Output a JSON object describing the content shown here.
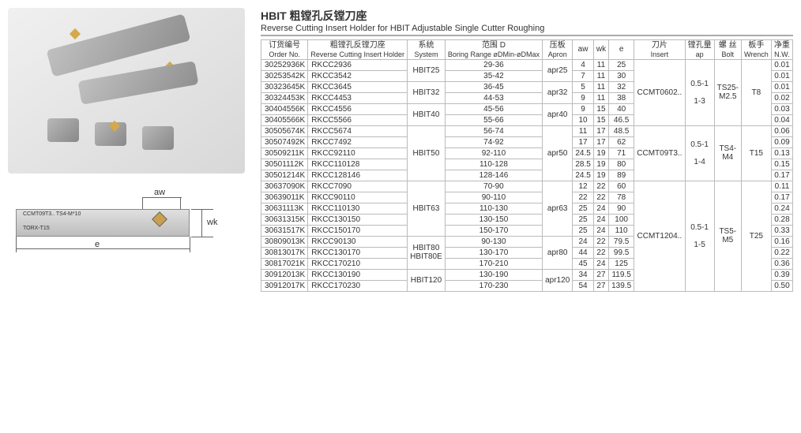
{
  "title": {
    "heading_cn": "HBIT 粗镗孔反镗刀座",
    "heading_en": "Reverse Cutting Insert Holder for HBIT Adjustable Single Cutter Roughing"
  },
  "diagram": {
    "aw_label": "aw",
    "wk_label": "wk",
    "e_label": "e",
    "insert_text": "CCMT09T3.. TS4-M*10"
  },
  "columns": [
    {
      "top": "订货编号",
      "bot": "Order No."
    },
    {
      "top": "粗镗孔反镗刀座",
      "bot": "Reverse Cutting Insert Holder"
    },
    {
      "top": "系统",
      "bot": "System"
    },
    {
      "top": "范围 D",
      "bot": "Boring Range øDMin-øDMax"
    },
    {
      "top": "压板",
      "bot": "Apron"
    },
    {
      "top": "aw",
      "bot": ""
    },
    {
      "top": "wk",
      "bot": ""
    },
    {
      "top": "e",
      "bot": ""
    },
    {
      "top": "刀片",
      "bot": "Insert"
    },
    {
      "top": "镗孔量",
      "bot": "ap"
    },
    {
      "top": "螺 丝",
      "bot": "Bolt"
    },
    {
      "top": "板手",
      "bot": "Wrench"
    },
    {
      "top": "净重",
      "bot": "N.W."
    }
  ],
  "rows": [
    {
      "order": "30252936K",
      "holder": "RKCC2936",
      "range": "29-36",
      "aw": "4",
      "wk": "11",
      "e": "25",
      "nw": "0.01"
    },
    {
      "order": "30253542K",
      "holder": "RKCC3542",
      "range": "35-42",
      "aw": "7",
      "wk": "11",
      "e": "30",
      "nw": "0.01"
    },
    {
      "order": "30323645K",
      "holder": "RKCC3645",
      "range": "36-45",
      "aw": "5",
      "wk": "11",
      "e": "32",
      "nw": "0.01"
    },
    {
      "order": "30324453K",
      "holder": "RKCC4453",
      "range": "44-53",
      "aw": "9",
      "wk": "11",
      "e": "38",
      "nw": "0.02"
    },
    {
      "order": "30404556K",
      "holder": "RKCC4556",
      "range": "45-56",
      "aw": "9",
      "wk": "15",
      "e": "40",
      "nw": "0.03"
    },
    {
      "order": "30405566K",
      "holder": "RKCC5566",
      "range": "55-66",
      "aw": "10",
      "wk": "15",
      "e": "46.5",
      "nw": "0.04"
    },
    {
      "order": "30505674K",
      "holder": "RKCC5674",
      "range": "56-74",
      "aw": "11",
      "wk": "17",
      "e": "48.5",
      "nw": "0.06"
    },
    {
      "order": "30507492K",
      "holder": "RKCC7492",
      "range": "74-92",
      "aw": "17",
      "wk": "17",
      "e": "62",
      "nw": "0.09"
    },
    {
      "order": "30509211K",
      "holder": "RKCC92110",
      "range": "92-110",
      "aw": "24.5",
      "wk": "19",
      "e": "71",
      "nw": "0.13"
    },
    {
      "order": "30501112K",
      "holder": "RKCC110128",
      "range": "110-128",
      "aw": "28.5",
      "wk": "19",
      "e": "80",
      "nw": "0.15"
    },
    {
      "order": "30501214K",
      "holder": "RKCC128146",
      "range": "128-146",
      "aw": "24.5",
      "wk": "19",
      "e": "89",
      "nw": "0.17"
    },
    {
      "order": "30637090K",
      "holder": "RKCC7090",
      "range": "70-90",
      "aw": "12",
      "wk": "22",
      "e": "60",
      "nw": "0.11"
    },
    {
      "order": "30639011K",
      "holder": "RKCC90110",
      "range": "90-110",
      "aw": "22",
      "wk": "22",
      "e": "78",
      "nw": "0.17"
    },
    {
      "order": "30631113K",
      "holder": "RKCC110130",
      "range": "110-130",
      "aw": "25",
      "wk": "24",
      "e": "90",
      "nw": "0.24"
    },
    {
      "order": "30631315K",
      "holder": "RKCC130150",
      "range": "130-150",
      "aw": "25",
      "wk": "24",
      "e": "100",
      "nw": "0.28"
    },
    {
      "order": "30631517K",
      "holder": "RKCC150170",
      "range": "150-170",
      "aw": "25",
      "wk": "24",
      "e": "110",
      "nw": "0.33"
    },
    {
      "order": "30809013K",
      "holder": "RKCC90130",
      "range": "90-130",
      "aw": "24",
      "wk": "22",
      "e": "79.5",
      "nw": "0.16"
    },
    {
      "order": "30813017K",
      "holder": "RKCC130170",
      "range": "130-170",
      "aw": "44",
      "wk": "22",
      "e": "99.5",
      "nw": "0.22"
    },
    {
      "order": "30817021K",
      "holder": "RKCC170210",
      "range": "170-210",
      "aw": "45",
      "wk": "24",
      "e": "125",
      "nw": "0.36"
    },
    {
      "order": "30912013K",
      "holder": "RKCC130190",
      "range": "130-190",
      "aw": "34",
      "wk": "27",
      "e": "119.5",
      "nw": "0.39"
    },
    {
      "order": "30912017K",
      "holder": "RKCC170230",
      "range": "170-230",
      "aw": "54",
      "wk": "27",
      "e": "139.5",
      "nw": "0.50"
    }
  ],
  "spans": {
    "system": [
      {
        "start": 0,
        "span": 2,
        "label": "HBIT25"
      },
      {
        "start": 2,
        "span": 2,
        "label": "HBIT32"
      },
      {
        "start": 4,
        "span": 2,
        "label": "HBIT40"
      },
      {
        "start": 6,
        "span": 5,
        "label": "HBIT50"
      },
      {
        "start": 11,
        "span": 5,
        "label": "HBIT63"
      },
      {
        "start": 16,
        "span": 3,
        "label": "HBIT80\nHBIT80E"
      },
      {
        "start": 19,
        "span": 2,
        "label": "HBIT120"
      }
    ],
    "apron": [
      {
        "start": 0,
        "span": 2,
        "label": "apr25"
      },
      {
        "start": 2,
        "span": 2,
        "label": "apr32"
      },
      {
        "start": 4,
        "span": 2,
        "label": "apr40"
      },
      {
        "start": 6,
        "span": 5,
        "label": "apr50"
      },
      {
        "start": 11,
        "span": 5,
        "label": "apr63"
      },
      {
        "start": 16,
        "span": 3,
        "label": "apr80"
      },
      {
        "start": 19,
        "span": 2,
        "label": "apr120"
      }
    ],
    "insert": [
      {
        "start": 0,
        "span": 6,
        "label": "CCMT0602.."
      },
      {
        "start": 6,
        "span": 5,
        "label": "CCMT09T3.."
      },
      {
        "start": 11,
        "span": 10,
        "label": "CCMT1204.."
      }
    ],
    "ap": [
      {
        "start": 0,
        "span": 6,
        "label": "0.5-1\n\n1-3"
      },
      {
        "start": 6,
        "span": 5,
        "label": "0.5-1\n\n1-4"
      },
      {
        "start": 11,
        "span": 10,
        "label": "0.5-1\n\n1-5"
      }
    ],
    "bolt": [
      {
        "start": 0,
        "span": 6,
        "label": "TS25-\nM2.5"
      },
      {
        "start": 6,
        "span": 5,
        "label": "TS4-\nM4"
      },
      {
        "start": 11,
        "span": 10,
        "label": "TS5-\nM5"
      }
    ],
    "wrench": [
      {
        "start": 0,
        "span": 6,
        "label": "T8"
      },
      {
        "start": 6,
        "span": 5,
        "label": "T15"
      },
      {
        "start": 11,
        "span": 10,
        "label": "T25"
      }
    ]
  }
}
